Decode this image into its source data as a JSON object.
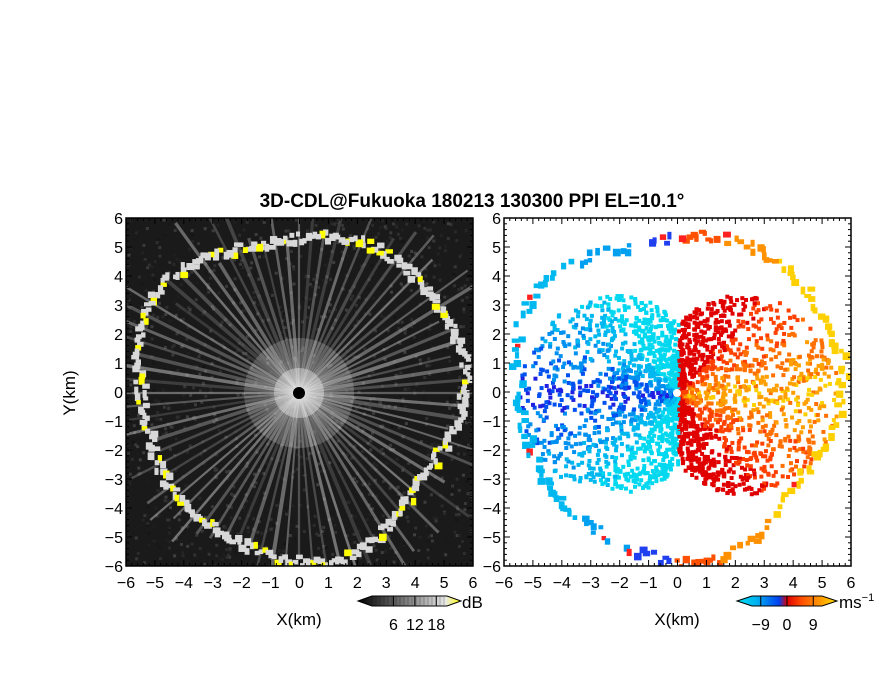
{
  "figure": {
    "title": "3D-CDL@Fukuoka 180213 130300 PPI EL=10.1°"
  },
  "chart_data": [
    {
      "type": "heatmap",
      "panel": "reflectivity",
      "xlabel": "X(km)",
      "ylabel": "Y(km)",
      "xlim": [
        -6,
        6
      ],
      "ylim": [
        -6,
        6
      ],
      "x_ticks": [
        "−6",
        "−5",
        "−4",
        "−3",
        "−2",
        "−1",
        "0",
        "1",
        "2",
        "3",
        "4",
        "5",
        "6"
      ],
      "y_ticks": [
        "−6",
        "−5",
        "−4",
        "−3",
        "−2",
        "−1",
        "0",
        "1",
        "2",
        "3",
        "4",
        "5",
        "6"
      ],
      "colorbar": {
        "unit": "dB",
        "ticks": [
          "6",
          "12",
          "18"
        ],
        "tick_values": [
          6,
          12,
          18
        ],
        "range": [
          0,
          21
        ],
        "colors": [
          "#000000",
          "#303030",
          "#606060",
          "#909090",
          "#c0c0c0",
          "#e8e8e8",
          "#ffff00"
        ]
      },
      "features": {
        "background_color": "#1a1a1a",
        "radial_streaks": true,
        "center_marker": [
          0,
          0
        ],
        "boundary_echo_color": "#d8d8d8",
        "highlight_color": "#ffff00"
      }
    },
    {
      "type": "heatmap",
      "panel": "doppler_velocity",
      "xlabel": "X(km)",
      "xlim": [
        -6,
        6
      ],
      "ylim": [
        -6,
        6
      ],
      "x_ticks": [
        "−6",
        "−5",
        "−4",
        "−3",
        "−2",
        "−1",
        "0",
        "1",
        "2",
        "3",
        "4",
        "5",
        "6"
      ],
      "y_ticks": [
        "−6",
        "−5",
        "−4",
        "−3",
        "−2",
        "−1",
        "0",
        "1",
        "2",
        "3",
        "4",
        "5",
        "6"
      ],
      "colorbar": {
        "unit": "ms",
        "unit_exponent": "−1",
        "ticks": [
          "−9",
          "0",
          "9"
        ],
        "tick_values": [
          -9,
          0,
          9
        ],
        "range": [
          -12,
          12
        ],
        "colors": [
          "#00d8e8",
          "#00a8f0",
          "#0050f0",
          "#2020e0",
          "#e00000",
          "#ff5000",
          "#ff9000",
          "#ffd000"
        ]
      },
      "features": {
        "background_color": "#ffffff",
        "negative_side": "west",
        "positive_side": "east"
      }
    }
  ]
}
